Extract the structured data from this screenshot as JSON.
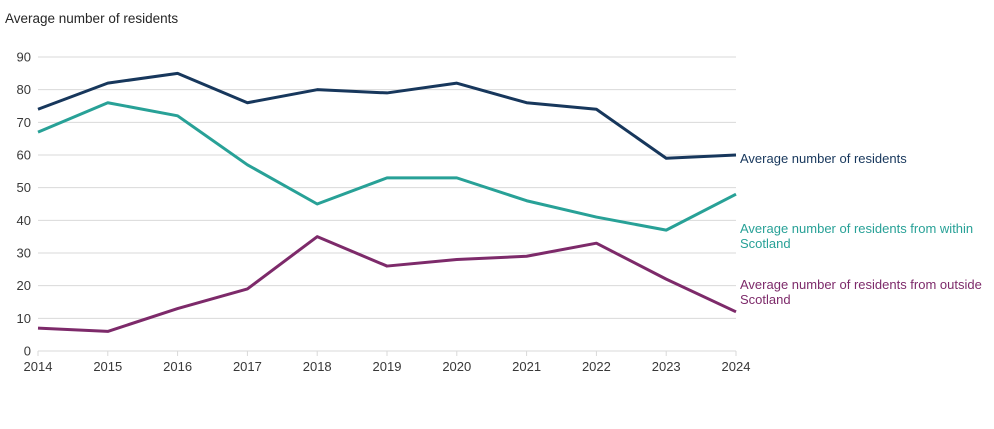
{
  "title": "Average number of residents",
  "chart_data": {
    "type": "line",
    "title": "Average number of residents",
    "x": [
      2014,
      2015,
      2016,
      2017,
      2018,
      2019,
      2020,
      2021,
      2022,
      2023,
      2024
    ],
    "series": [
      {
        "name": "Average number of residents",
        "color": "#17375c",
        "values": [
          74,
          82,
          85,
          76,
          80,
          79,
          82,
          76,
          74,
          59,
          60
        ]
      },
      {
        "name": "Average number of residents from within Scotland",
        "color": "#28a197",
        "values": [
          67,
          76,
          72,
          57,
          45,
          53,
          53,
          46,
          41,
          37,
          48
        ]
      },
      {
        "name": "Average number of residents from outside Scotland",
        "color": "#7d2a6a",
        "values": [
          7,
          6,
          13,
          19,
          35,
          26,
          28,
          29,
          33,
          22,
          12
        ]
      }
    ],
    "ylim": [
      0,
      90
    ],
    "ytick_step": 10,
    "yticks": [
      0,
      10,
      20,
      30,
      40,
      50,
      60,
      70,
      80,
      90
    ],
    "grid": "horizontal-only",
    "gridline_color": "#d9d9d9",
    "legend_position": "direct-labels-right",
    "xlabel": "",
    "ylabel": ""
  }
}
